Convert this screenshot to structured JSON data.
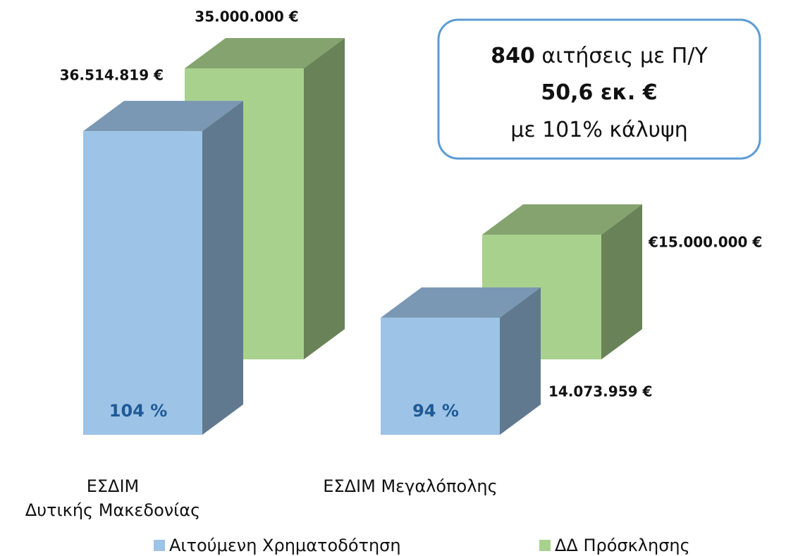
{
  "chart_data": {
    "type": "bar3d",
    "categories": [
      "ΕΣΔΙΜ\nΔυτικής Μακεδονίας",
      "ΕΣΔΙΜ Μεγαλόπολης"
    ],
    "series": [
      {
        "name": "Αιτούμενη Χρηματοδότηση",
        "color": "#9dc3e6",
        "values": [
          36514819,
          14073959
        ],
        "value_labels": [
          "36.514.819 €",
          "14.073.959 €"
        ],
        "coverage": [
          104,
          94
        ],
        "coverage_labels": [
          "104 %",
          "94 %"
        ]
      },
      {
        "name": "ΔΔ Πρόσκλησης",
        "color": "#a9d18e",
        "values": [
          35000000,
          15000000
        ],
        "value_labels": [
          "35.000.000 €",
          "€15.000.000  €"
        ]
      }
    ],
    "ylim": [
      0,
      40000000
    ],
    "legend": "bottom",
    "callout": [
      {
        "bold": "840",
        "text": "αιτήσεις με Π/Υ"
      },
      {
        "bold": "50,6 εκ. €"
      },
      {
        "text": "με 101% κάλυψη"
      }
    ]
  }
}
